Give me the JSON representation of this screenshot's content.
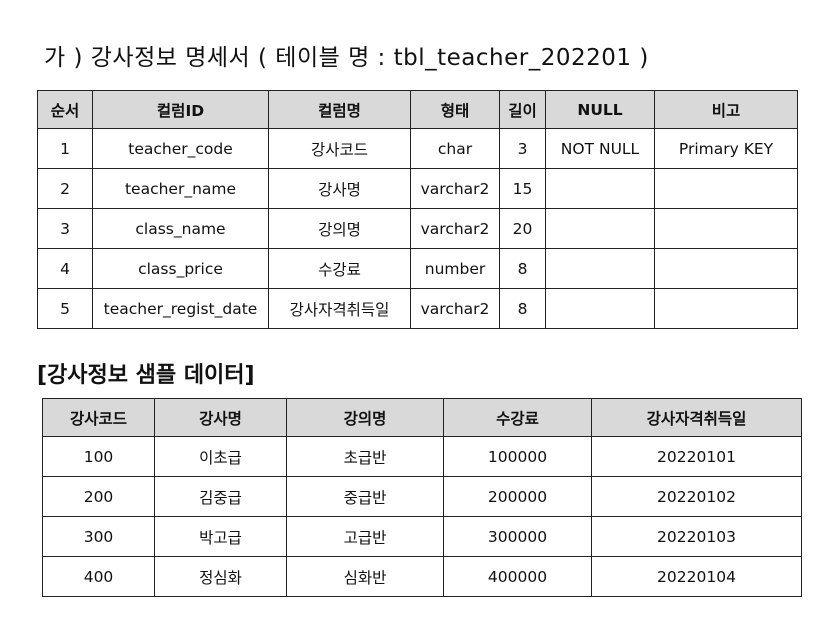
{
  "doc_title": "가 ) 강사정보  명세서 ( 테이블  명 : tbl_teacher_202201 )",
  "spec_table": {
    "headers": [
      "순서",
      "컬럼ID",
      "컬럼명",
      "형태",
      "길이",
      "NULL",
      "비고"
    ],
    "rows": [
      [
        "1",
        "teacher_code",
        "강사코드",
        "char",
        "3",
        "NOT  NULL",
        "Primary  KEY"
      ],
      [
        "2",
        "teacher_name",
        "강사명",
        "varchar2",
        "15",
        "",
        ""
      ],
      [
        "3",
        "class_name",
        "강의명",
        "varchar2",
        "20",
        "",
        ""
      ],
      [
        "4",
        "class_price",
        "수강료",
        "number",
        "8",
        "",
        ""
      ],
      [
        "5",
        "teacher_regist_date",
        "강사자격취득일",
        "varchar2",
        "8",
        "",
        ""
      ]
    ]
  },
  "sample_title": "[강사정보  샘플  데이터]",
  "sample_table": {
    "headers": [
      "강사코드",
      "강사명",
      "강의명",
      "수강료",
      "강사자격취득일"
    ],
    "rows": [
      [
        "100",
        "이초급",
        "초급반",
        "100000",
        "20220101"
      ],
      [
        "200",
        "김중급",
        "중급반",
        "200000",
        "20220102"
      ],
      [
        "300",
        "박고급",
        "고급반",
        "300000",
        "20220103"
      ],
      [
        "400",
        "정심화",
        "심화반",
        "400000",
        "20220104"
      ]
    ]
  }
}
